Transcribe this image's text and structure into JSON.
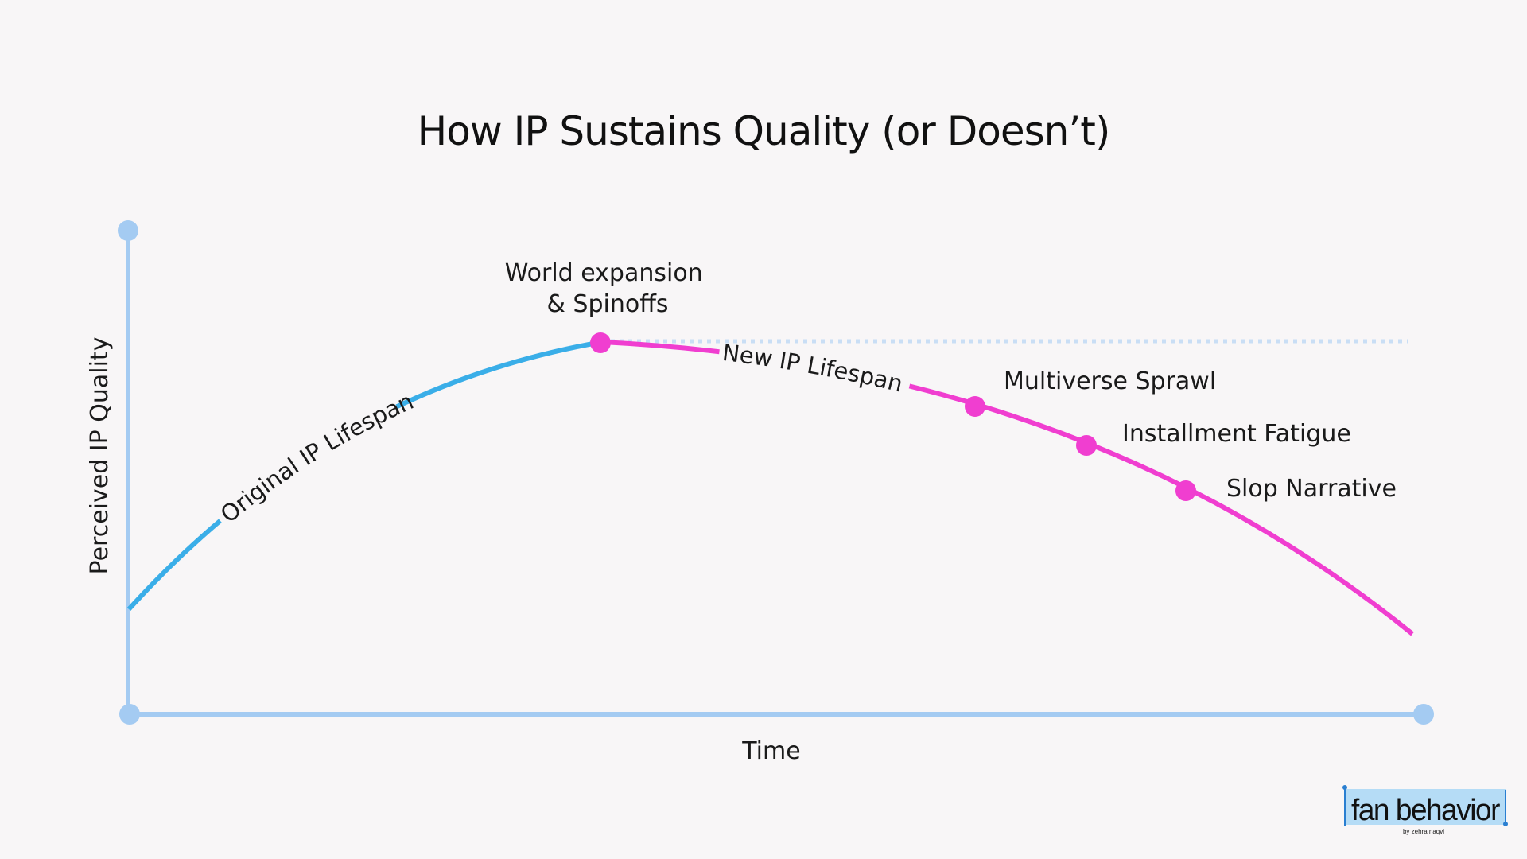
{
  "title": "How IP Sustains Quality (or Doesn’t)",
  "colors": {
    "background": "#f8f6f7",
    "axis": "#a4cbf2",
    "original_curve": "#3aaee8",
    "new_curve": "#f03ed0",
    "peak_line": "#c9def5",
    "logo_bg": "#b5dcf6",
    "logo_accent": "#2a7fd1"
  },
  "axes": {
    "x_label": "Time",
    "y_label": "Perceived IP Quality"
  },
  "curves": {
    "original_label": "Original IP Lifespan",
    "new_label": "New IP Lifespan"
  },
  "milestones": [
    {
      "line1": "World expansion",
      "line2": "& Spinoffs"
    },
    {
      "line1": "Multiverse Sprawl"
    },
    {
      "line1": "Installment Fatigue"
    },
    {
      "line1": "Slop Narrative"
    }
  ],
  "logo": {
    "main": "fan behavior",
    "sub": "by zehra naqvi"
  }
}
